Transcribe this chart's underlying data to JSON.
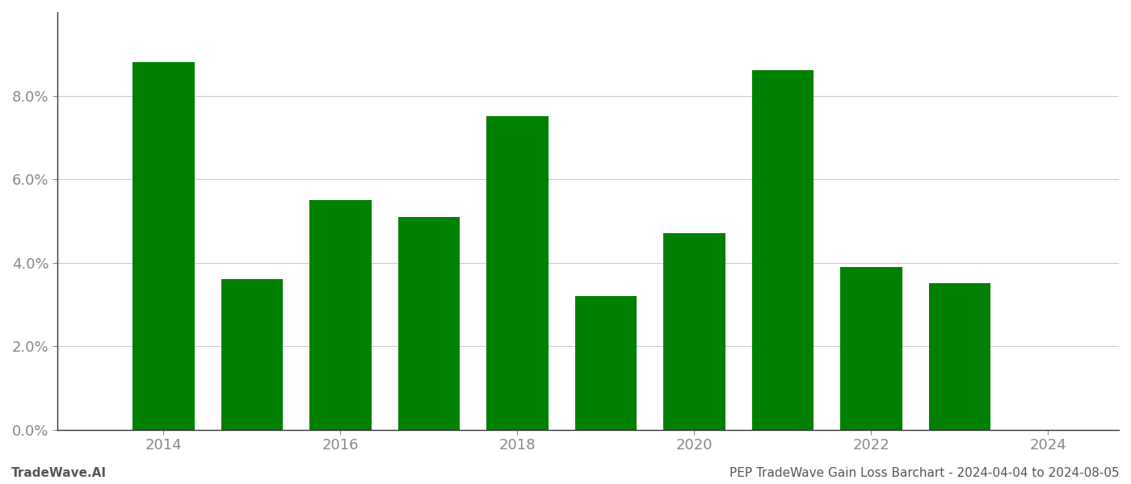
{
  "years": [
    2014,
    2015,
    2016,
    2017,
    2018,
    2019,
    2020,
    2021,
    2022,
    2023
  ],
  "values": [
    0.088,
    0.036,
    0.055,
    0.051,
    0.075,
    0.032,
    0.047,
    0.086,
    0.039,
    0.035
  ],
  "bar_color": "#008000",
  "background_color": "#ffffff",
  "ylim": [
    0,
    0.1
  ],
  "yticks": [
    0.0,
    0.02,
    0.04,
    0.06,
    0.08
  ],
  "xticks": [
    2014,
    2016,
    2018,
    2020,
    2022,
    2024
  ],
  "xlim_left": 2012.8,
  "xlim_right": 2024.8,
  "grid_color": "#cccccc",
  "bottom_left_text": "TradeWave.AI",
  "bottom_right_text": "PEP TradeWave Gain Loss Barchart - 2024-04-04 to 2024-08-05",
  "bottom_text_color": "#555555",
  "tick_label_color": "#888888",
  "bar_width": 0.7,
  "spine_color": "#333333"
}
